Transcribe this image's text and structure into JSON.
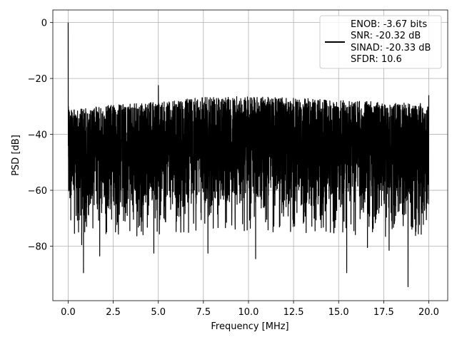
{
  "chart_data": {
    "type": "line",
    "xlabel": "Frequency [MHz]",
    "ylabel": "PSD [dB]",
    "xlim": [
      -0.85,
      21.05
    ],
    "ylim": [
      -99.5,
      4.5
    ],
    "grid": true,
    "legend_position": "top-right",
    "x_ticks": [
      0.0,
      2.5,
      5.0,
      7.5,
      10.0,
      12.5,
      15.0,
      17.5,
      20.0
    ],
    "x_tick_labels": [
      "0.0",
      "2.5",
      "5.0",
      "7.5",
      "10.0",
      "12.5",
      "15.0",
      "17.5",
      "20.0"
    ],
    "y_ticks": [
      0,
      -20,
      -40,
      -60,
      -80
    ],
    "y_tick_labels": [
      "0",
      "−20",
      "−40",
      "−60",
      "−80"
    ],
    "series": [
      {
        "color": "#000000",
        "legend_lines": [
          "ENOB: -3.67 bits",
          "SNR: -20.32 dB",
          "SINAD: -20.33 dB",
          "SFDR: 10.6"
        ],
        "peak": {
          "x": 0.0,
          "y": 0.0
        },
        "spurs": [
          {
            "x": 5.0,
            "y": -22.5
          },
          {
            "x": 0.0,
            "y": -25.0
          },
          {
            "x": 20.0,
            "y": -26.0
          }
        ],
        "upper_envelope": [
          [
            0.1,
            -31
          ],
          [
            2.5,
            -29.5
          ],
          [
            5,
            -28.5
          ],
          [
            7.5,
            -26.5
          ],
          [
            10,
            -26.5
          ],
          [
            12.5,
            -27.0
          ],
          [
            15,
            -27.5
          ],
          [
            17.5,
            -28.5
          ],
          [
            20,
            -29.0
          ]
        ],
        "noise_floor": [
          [
            0.1,
            -70
          ],
          [
            2.5,
            -69
          ],
          [
            5,
            -68
          ],
          [
            7.5,
            -67
          ],
          [
            10,
            -67
          ],
          [
            12.5,
            -67
          ],
          [
            15,
            -68
          ],
          [
            17.5,
            -69
          ],
          [
            20,
            -70
          ]
        ],
        "deep_dips": [
          {
            "x": 0.85,
            "y": -89.5
          },
          {
            "x": 0.75,
            "y": -79.5
          },
          {
            "x": 1.75,
            "y": -83.5
          },
          {
            "x": 4.75,
            "y": -82.5
          },
          {
            "x": 7.75,
            "y": -82.5
          },
          {
            "x": 10.4,
            "y": -84.5
          },
          {
            "x": 15.45,
            "y": -89.5
          },
          {
            "x": 16.6,
            "y": -80.5
          },
          {
            "x": 17.8,
            "y": -81.5
          },
          {
            "x": 18.85,
            "y": -94.5
          }
        ]
      }
    ]
  }
}
